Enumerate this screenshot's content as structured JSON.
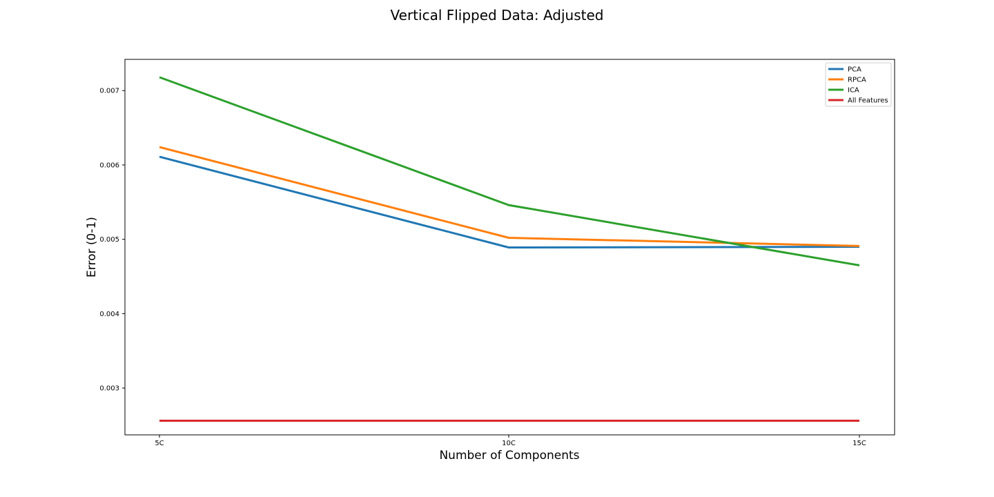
{
  "chart_data": {
    "type": "line",
    "title": "Vertical Flipped Data: Adjusted",
    "xlabel": "Number of Components",
    "ylabel": "Error (0-1)",
    "categories": [
      "5C",
      "10C",
      "15C"
    ],
    "ylim": [
      0.00237,
      0.00742
    ],
    "yticks": [
      "0.003",
      "0.004",
      "0.005",
      "0.006",
      "0.007"
    ],
    "ytick_values": [
      0.003,
      0.004,
      0.005,
      0.006,
      0.007
    ],
    "grid": false,
    "legend_position": "top-right",
    "series": [
      {
        "name": "PCA",
        "color": "#1f77b4",
        "values": [
          0.00611,
          0.00489,
          0.0049
        ]
      },
      {
        "name": "RPCA",
        "color": "#ff7f0e",
        "values": [
          0.00624,
          0.00502,
          0.00491
        ]
      },
      {
        "name": "ICA",
        "color": "#2ca02c",
        "values": [
          0.00718,
          0.00546,
          0.00465
        ]
      },
      {
        "name": "All Features",
        "color": "#d62728",
        "values": [
          0.00256,
          0.00256,
          0.00256
        ]
      }
    ]
  }
}
